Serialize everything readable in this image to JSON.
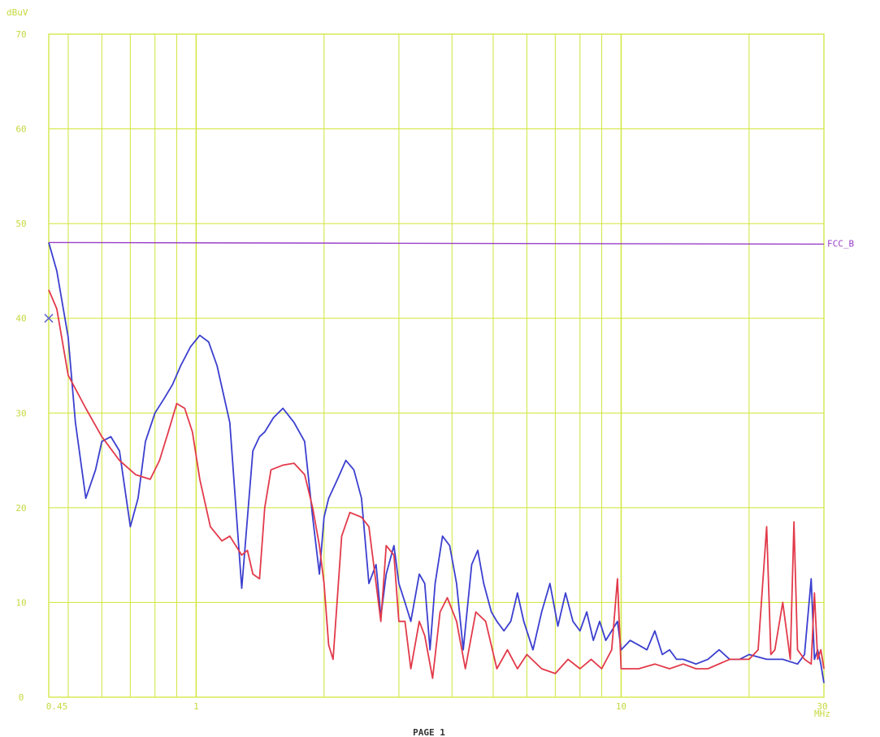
{
  "chart_data": {
    "type": "line",
    "ylabel": "dBuV",
    "xlabel": "MHz",
    "footer": "PAGE 1",
    "x_scale": "log",
    "xlim": [
      0.45,
      30
    ],
    "ylim": [
      0,
      70
    ],
    "y_ticks": [
      "0",
      "10",
      "20",
      "30",
      "40",
      "50",
      "60",
      "70"
    ],
    "x_tick_labels": [
      {
        "value": 0.45,
        "label": "0.45"
      },
      {
        "value": 1,
        "label": "1"
      },
      {
        "value": 10,
        "label": "10"
      },
      {
        "value": 30,
        "label": "30"
      }
    ],
    "grid": true,
    "colors": {
      "grid": "#d4e84a",
      "axis_text": "#c6d840",
      "limit": "#9a3fc8",
      "blue_trace": "#3b3fcf",
      "red_trace": "#e23a4a",
      "marker": "#5b63c8"
    },
    "limit_line": {
      "name": "FCC_B",
      "y": 48
    },
    "marker": {
      "x": 0.45,
      "y": 40,
      "symbol": "x"
    },
    "series": [
      {
        "color_key": "blue_trace",
        "x": [
          0.45,
          0.47,
          0.5,
          0.52,
          0.55,
          0.58,
          0.6,
          0.63,
          0.66,
          0.7,
          0.73,
          0.76,
          0.8,
          0.84,
          0.88,
          0.92,
          0.97,
          1.02,
          1.07,
          1.12,
          1.2,
          1.28,
          1.36,
          1.41,
          1.45,
          1.52,
          1.6,
          1.7,
          1.8,
          1.88,
          1.95,
          2.0,
          2.05,
          2.15,
          2.25,
          2.35,
          2.45,
          2.55,
          2.65,
          2.72,
          2.8,
          2.92,
          3.0,
          3.1,
          3.2,
          3.35,
          3.45,
          3.55,
          3.65,
          3.8,
          3.95,
          4.1,
          4.25,
          4.45,
          4.6,
          4.75,
          4.95,
          5.1,
          5.3,
          5.5,
          5.7,
          5.9,
          6.2,
          6.5,
          6.8,
          7.1,
          7.4,
          7.7,
          8.0,
          8.3,
          8.6,
          8.9,
          9.2,
          9.5,
          9.8,
          10.0,
          10.5,
          11.0,
          11.5,
          12.0,
          12.5,
          13.0,
          13.5,
          14.0,
          15.0,
          16.0,
          17.0,
          18.0,
          19.0,
          20.0,
          22.0,
          24.0,
          26.0,
          27.0,
          28.0,
          28.5,
          29.0,
          29.5,
          30.0
        ],
        "y": [
          48,
          45,
          38,
          29,
          21,
          24,
          27,
          27.5,
          26,
          18,
          21,
          27,
          30,
          31.5,
          33,
          35,
          37,
          38.2,
          37.5,
          35,
          29,
          11.5,
          26,
          27.5,
          28,
          29.5,
          30.5,
          29,
          27,
          19,
          13,
          19,
          21,
          23,
          25,
          24,
          21,
          12,
          14,
          8.5,
          13,
          16,
          12,
          10,
          8,
          13,
          12,
          5,
          12,
          17,
          16,
          12,
          5,
          14,
          15.5,
          12,
          9,
          8,
          7,
          8,
          11,
          8,
          5,
          9,
          12,
          7.5,
          11,
          8,
          7,
          9,
          6,
          8,
          6,
          7,
          8,
          5,
          6,
          5.5,
          5,
          7,
          4.5,
          5,
          4,
          4,
          3.5,
          4,
          5,
          4,
          4,
          4.5,
          4,
          4,
          3.5,
          4.5,
          12.5,
          4,
          5,
          3.5,
          1.5
        ]
      },
      {
        "color_key": "red_trace",
        "x": [
          0.45,
          0.47,
          0.5,
          0.55,
          0.6,
          0.66,
          0.72,
          0.78,
          0.82,
          0.86,
          0.9,
          0.94,
          0.98,
          1.02,
          1.08,
          1.15,
          1.2,
          1.28,
          1.32,
          1.36,
          1.41,
          1.45,
          1.5,
          1.6,
          1.7,
          1.8,
          1.88,
          1.95,
          2.0,
          2.05,
          2.1,
          2.2,
          2.3,
          2.45,
          2.55,
          2.65,
          2.72,
          2.8,
          2.92,
          3.0,
          3.1,
          3.2,
          3.35,
          3.45,
          3.6,
          3.75,
          3.9,
          4.1,
          4.3,
          4.55,
          4.8,
          5.1,
          5.4,
          5.7,
          6.0,
          6.5,
          7.0,
          7.5,
          8.0,
          8.5,
          9.0,
          9.5,
          9.8,
          10.0,
          11.0,
          12.0,
          13.0,
          14.0,
          15.0,
          16.0,
          18.0,
          20.0,
          21.0,
          22.0,
          22.5,
          23.0,
          24.0,
          25.0,
          25.5,
          26.0,
          27.0,
          28.0,
          28.5,
          29.0,
          29.5,
          30.0
        ],
        "y": [
          43,
          41,
          34,
          30.5,
          27.5,
          25,
          23.5,
          23,
          25,
          28,
          31,
          30.5,
          28,
          23,
          18,
          16.5,
          17,
          15,
          15.5,
          13,
          12.5,
          20,
          24,
          24.5,
          24.7,
          23.5,
          20,
          16,
          12,
          5.5,
          4,
          17,
          19.5,
          19,
          18,
          12,
          8,
          16,
          15,
          8,
          8,
          3,
          8,
          6.5,
          2,
          9,
          10.5,
          8,
          3,
          9,
          8,
          3,
          5,
          3,
          4.5,
          3,
          2.5,
          4,
          3,
          4,
          3,
          5,
          12.5,
          3,
          3,
          3.5,
          3,
          3.5,
          3,
          3,
          4,
          4,
          5,
          18,
          4.5,
          5,
          10,
          4,
          18.5,
          5,
          4,
          3.5,
          11,
          4,
          5,
          3
        ]
      }
    ]
  }
}
